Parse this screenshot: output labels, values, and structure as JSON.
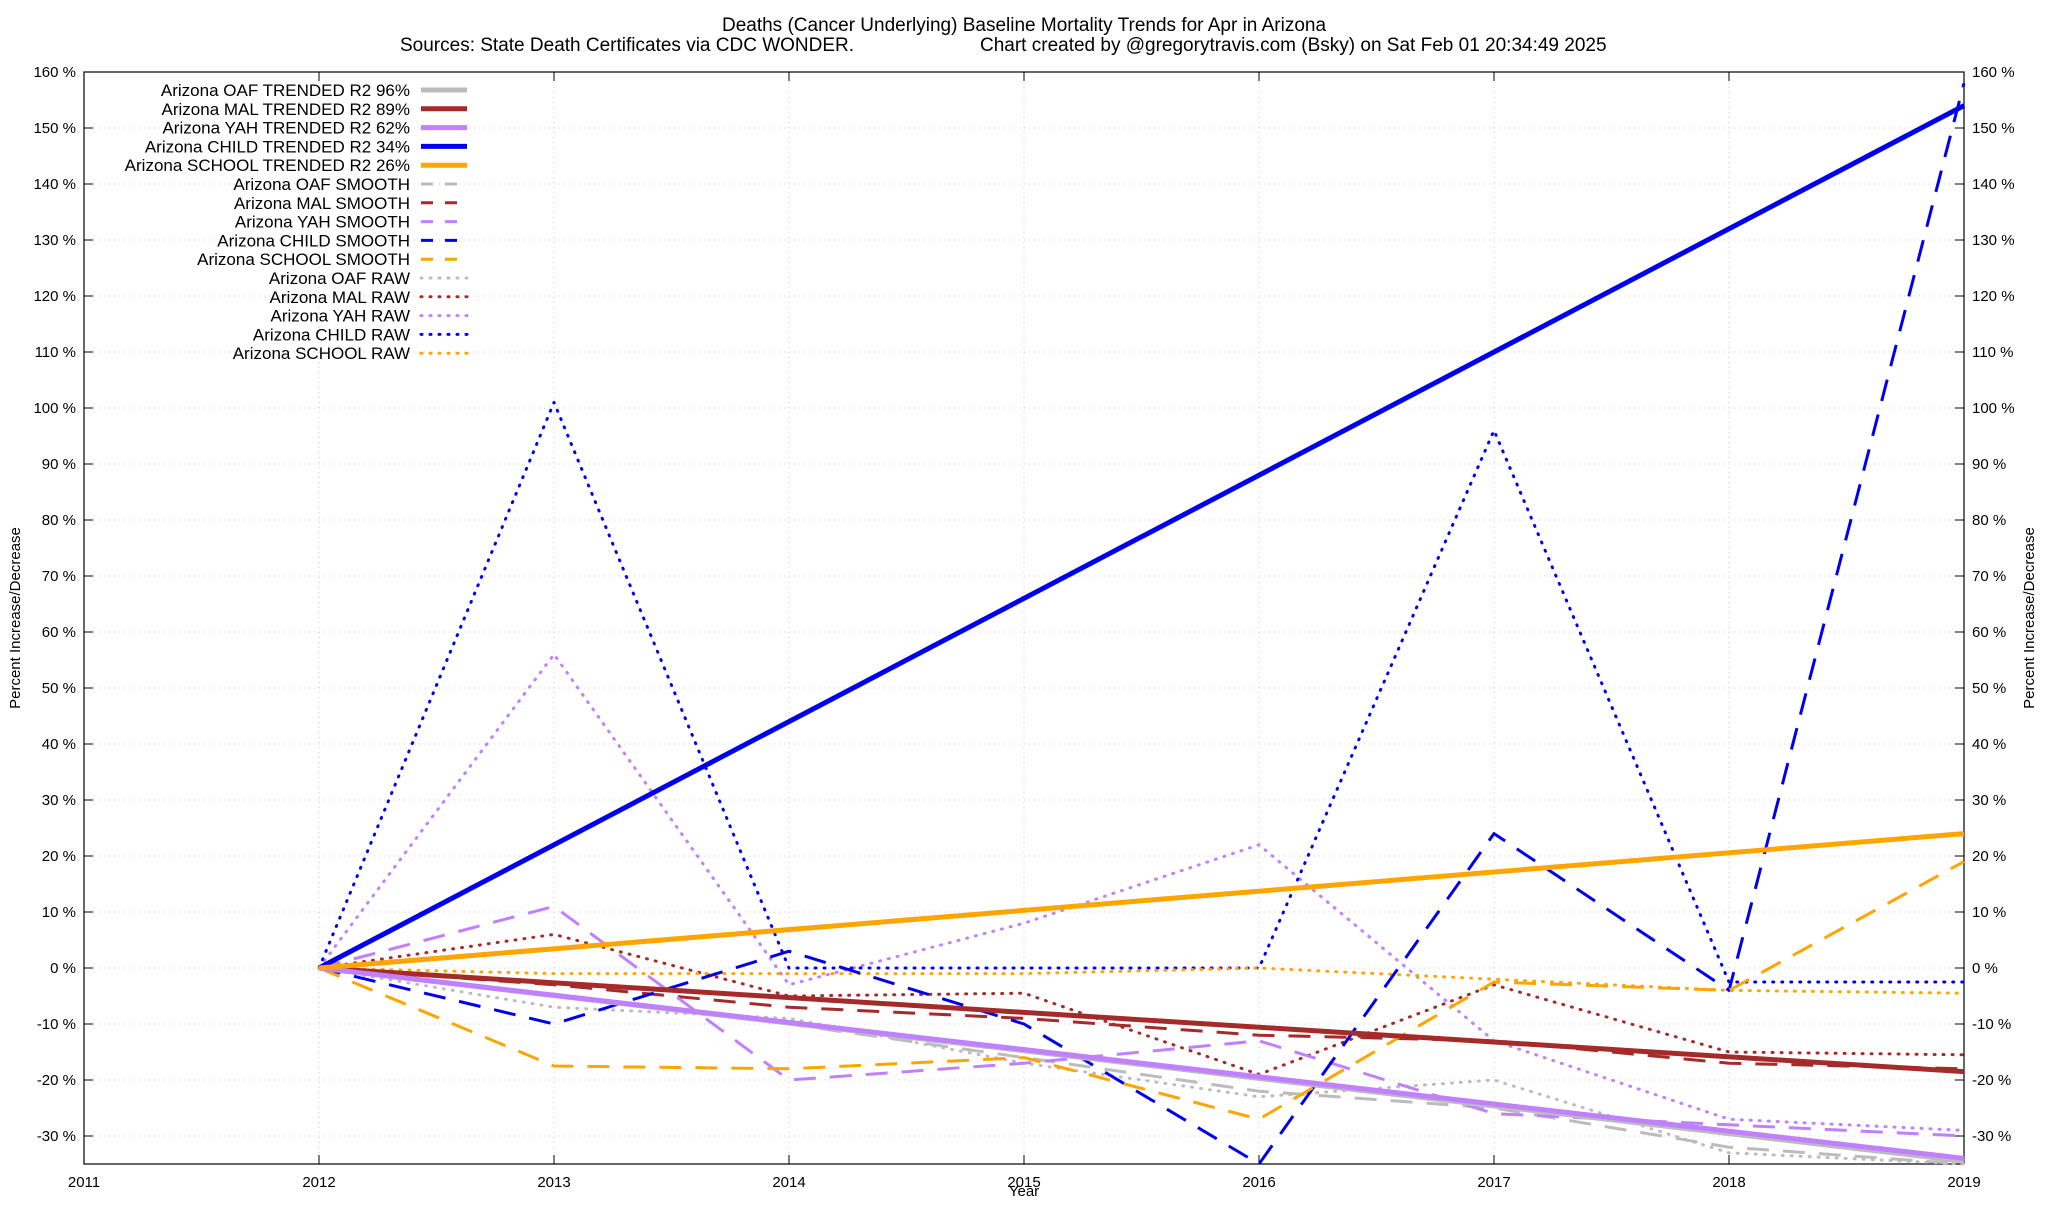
{
  "chart_data": {
    "type": "line",
    "title": "Deaths (Cancer Underlying)  Baseline Mortality Trends for Apr in Arizona",
    "subtitle_left": "Sources: State Death Certificates via CDC WONDER.",
    "subtitle_right": "Chart created by @gregorytravis.com (Bsky) on Sat Feb 01 20:34:49 2025",
    "xlabel": "Year",
    "ylabel": "Percent Increase/Decrease",
    "xlim": [
      2011,
      2019
    ],
    "ylim": [
      -35,
      160
    ],
    "grid": true,
    "legend_position": "top-left",
    "x_ticks": [
      2011,
      2012,
      2013,
      2014,
      2015,
      2016,
      2017,
      2018,
      2019
    ],
    "x_tick_labels": [
      "2011",
      "2012",
      "2013",
      "2014",
      "2015",
      "2016",
      "2017",
      "2018",
      "2019"
    ],
    "y_ticks": [
      -30,
      -20,
      -10,
      0,
      10,
      20,
      30,
      40,
      50,
      60,
      70,
      80,
      90,
      100,
      110,
      120,
      130,
      140,
      150,
      160
    ],
    "y_tick_labels": [
      "-30 %",
      "-20 %",
      "-10 %",
      "0 %",
      "10 %",
      "20 %",
      "30 %",
      "40 %",
      "50 %",
      "60 %",
      "70 %",
      "80 %",
      "90 %",
      "100 %",
      "110 %",
      "120 %",
      "130 %",
      "140 %",
      "150 %",
      "160 %"
    ],
    "series": [
      {
        "name": "Arizona OAF TRENDED R2  96%",
        "style": "trend",
        "color": "#bcbcbc",
        "x": [
          2012,
          2019
        ],
        "y": [
          0,
          -34.5
        ]
      },
      {
        "name": "Arizona MAL TRENDED R2  89%",
        "style": "trend",
        "color": "#a52a2a",
        "x": [
          2012,
          2019
        ],
        "y": [
          0,
          -18.5
        ]
      },
      {
        "name": "Arizona YAH TRENDED R2  62%",
        "style": "trend",
        "color": "#c080ff",
        "x": [
          2012,
          2019
        ],
        "y": [
          0,
          -34
        ]
      },
      {
        "name": "Arizona CHILD TRENDED R2  34%",
        "style": "trend",
        "color": "#0000ee",
        "x": [
          2012,
          2019
        ],
        "y": [
          0,
          154
        ]
      },
      {
        "name": "Arizona SCHOOL TRENDED R2  26%",
        "style": "trend",
        "color": "#ffa500",
        "x": [
          2012,
          2019
        ],
        "y": [
          0,
          24
        ]
      },
      {
        "name": "Arizona OAF SMOOTH",
        "style": "smooth",
        "color": "#bcbcbc",
        "x": [
          2012,
          2013,
          2014,
          2015,
          2016,
          2017,
          2018,
          2019
        ],
        "y": [
          0,
          -5,
          -10,
          -16,
          -22,
          -25,
          -32,
          -35
        ]
      },
      {
        "name": "Arizona MAL SMOOTH",
        "style": "smooth",
        "color": "#a52a2a",
        "x": [
          2012,
          2013,
          2014,
          2015,
          2016,
          2017,
          2018,
          2019
        ],
        "y": [
          0,
          -3,
          -7,
          -9,
          -12,
          -13,
          -17,
          -18
        ]
      },
      {
        "name": "Arizona YAH SMOOTH",
        "style": "smooth",
        "color": "#c080ff",
        "x": [
          2012,
          2013,
          2014,
          2015,
          2016,
          2017,
          2018,
          2019
        ],
        "y": [
          0,
          11,
          -20,
          -17,
          -13,
          -26,
          -28,
          -30
        ]
      },
      {
        "name": "Arizona CHILD SMOOTH",
        "style": "smooth",
        "color": "#0000ee",
        "x": [
          2012,
          2013,
          2014,
          2015,
          2016,
          2017,
          2018,
          2019
        ],
        "y": [
          0,
          -10,
          3,
          -10,
          -35,
          24,
          -4,
          158
        ]
      },
      {
        "name": "Arizona SCHOOL SMOOTH",
        "style": "smooth",
        "color": "#ffa500",
        "x": [
          2012,
          2013,
          2014,
          2015,
          2016,
          2017,
          2018,
          2019
        ],
        "y": [
          0,
          -17.5,
          -18,
          -16,
          -27,
          -2.5,
          -4,
          19
        ]
      },
      {
        "name": "Arizona OAF RAW",
        "style": "raw",
        "color": "#bcbcbc",
        "x": [
          2012,
          2013,
          2014,
          2015,
          2016,
          2017,
          2018,
          2019
        ],
        "y": [
          0,
          -7,
          -9,
          -17,
          -23,
          -20,
          -33,
          -35
        ]
      },
      {
        "name": "Arizona MAL RAW",
        "style": "raw",
        "color": "#a52a2a",
        "x": [
          2012,
          2013,
          2014,
          2015,
          2016,
          2017,
          2018,
          2019
        ],
        "y": [
          0,
          6,
          -5,
          -4.5,
          -19,
          -3,
          -15,
          -15.5
        ]
      },
      {
        "name": "Arizona YAH RAW",
        "style": "raw",
        "color": "#c080ff",
        "x": [
          2012,
          2013,
          2014,
          2015,
          2016,
          2017,
          2018,
          2019
        ],
        "y": [
          0,
          56,
          -3,
          8,
          22,
          -13,
          -27,
          -29
        ]
      },
      {
        "name": "Arizona CHILD RAW",
        "style": "raw",
        "color": "#0000ee",
        "x": [
          2012,
          2013,
          2014,
          2015,
          2016,
          2017,
          2018,
          2019
        ],
        "y": [
          0,
          101,
          0,
          0,
          0,
          96,
          -2.5,
          -2.5
        ]
      },
      {
        "name": "Arizona SCHOOL RAW",
        "style": "raw",
        "color": "#ffa500",
        "x": [
          2012,
          2013,
          2014,
          2015,
          2016,
          2017,
          2018,
          2019
        ],
        "y": [
          0,
          -1,
          -1,
          -1,
          0,
          -2,
          -4,
          -4.5
        ]
      }
    ]
  }
}
